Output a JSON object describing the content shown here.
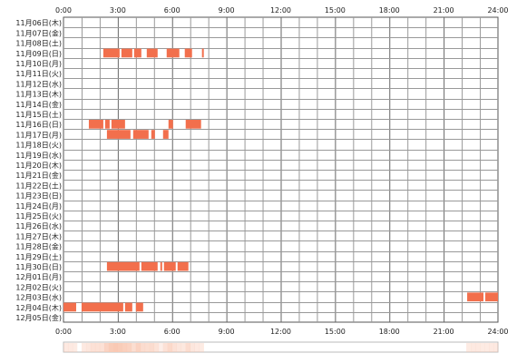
{
  "chart_data": {
    "type": "heatmap",
    "x_ticks": [
      "0:00",
      "3:00",
      "6:00",
      "9:00",
      "12:00",
      "15:00",
      "18:00",
      "21:00",
      "24:00"
    ],
    "x_range_hours": [
      0,
      24
    ],
    "grid": true,
    "rows": [
      "11月06日(木)",
      "11月07日(金)",
      "11月08日(土)",
      "11月09日(日)",
      "11月10日(月)",
      "11月11日(火)",
      "11月12日(水)",
      "11月13日(木)",
      "11月14日(金)",
      "11月15日(土)",
      "11月16日(日)",
      "11月17日(月)",
      "11月18日(火)",
      "11月19日(水)",
      "11月20日(木)",
      "11月21日(金)",
      "11月22日(土)",
      "11月23日(日)",
      "11月24日(月)",
      "11月25日(火)",
      "11月26日(水)",
      "11月27日(木)",
      "11月28日(金)",
      "11月29日(土)",
      "11月30日(日)",
      "12月01日(月)",
      "12月02日(火)",
      "12月03日(水)",
      "12月04日(木)",
      "12月05日(金)"
    ],
    "segments": [
      {
        "row": 3,
        "start": 2.2,
        "end": 3.1
      },
      {
        "row": 3,
        "start": 3.2,
        "end": 3.8
      },
      {
        "row": 3,
        "start": 3.9,
        "end": 4.3
      },
      {
        "row": 3,
        "start": 4.6,
        "end": 5.2
      },
      {
        "row": 3,
        "start": 5.7,
        "end": 6.4
      },
      {
        "row": 3,
        "start": 6.7,
        "end": 7.1
      },
      {
        "row": 3,
        "start": 7.65,
        "end": 7.75
      },
      {
        "row": 10,
        "start": 1.4,
        "end": 2.2
      },
      {
        "row": 10,
        "start": 2.3,
        "end": 2.55
      },
      {
        "row": 10,
        "start": 2.65,
        "end": 3.4
      },
      {
        "row": 10,
        "start": 5.8,
        "end": 6.05
      },
      {
        "row": 10,
        "start": 6.75,
        "end": 7.6
      },
      {
        "row": 11,
        "start": 2.4,
        "end": 3.7
      },
      {
        "row": 11,
        "start": 3.85,
        "end": 4.7
      },
      {
        "row": 11,
        "start": 4.85,
        "end": 5.05
      },
      {
        "row": 11,
        "start": 5.5,
        "end": 5.8
      },
      {
        "row": 24,
        "start": 2.4,
        "end": 4.2
      },
      {
        "row": 24,
        "start": 4.3,
        "end": 5.2
      },
      {
        "row": 24,
        "start": 5.35,
        "end": 5.45
      },
      {
        "row": 24,
        "start": 5.55,
        "end": 6.2
      },
      {
        "row": 24,
        "start": 6.3,
        "end": 6.9
      },
      {
        "row": 27,
        "start": 22.3,
        "end": 23.2
      },
      {
        "row": 27,
        "start": 23.3,
        "end": 24.0
      },
      {
        "row": 28,
        "start": 0.0,
        "end": 0.7
      },
      {
        "row": 28,
        "start": 1.0,
        "end": 3.3
      },
      {
        "row": 28,
        "start": 3.4,
        "end": 3.8
      },
      {
        "row": 28,
        "start": 4.0,
        "end": 4.4
      }
    ],
    "colors": {
      "bar": "#f26f4c",
      "grid": "#999999",
      "border": "#555555",
      "summary_bar": "#f9c9b4",
      "summary_bg": "#ffffff"
    }
  }
}
